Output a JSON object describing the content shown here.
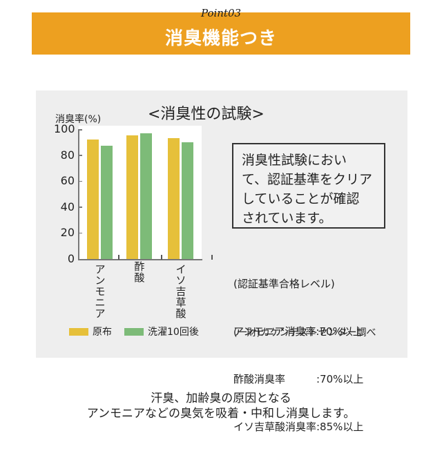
{
  "banner": {
    "subtitle": "Point03",
    "title": "消臭機能つき",
    "color": "#eda020"
  },
  "chart_data": {
    "type": "bar",
    "title": "<消臭性の試験>",
    "ylabel": "消臭率(%)",
    "xlabel": "",
    "ylim": [
      0,
      100
    ],
    "yticks": [
      0,
      20,
      40,
      60,
      80,
      100
    ],
    "categories": [
      "アンモニア",
      "酢酸",
      "イソ吉草酸"
    ],
    "series": [
      {
        "name": "原布",
        "color": "#e6c03a",
        "values": [
          92,
          95,
          93
        ]
      },
      {
        "name": "洗濯10回後",
        "color": "#7dbb78",
        "values": [
          87,
          97,
          90
        ]
      }
    ],
    "grid": false,
    "legend_position": "bottom"
  },
  "note": {
    "lines": [
      "消臭性試験におい",
      "て、認証基準をクリア",
      "していることが確認",
      "されています。"
    ]
  },
  "criteria": {
    "heading": "(認証基準合格レベル)",
    "rows": [
      "アンモニア消臭率:70%以上",
      "酢酸消臭率　　　:70%以上",
      "イソ吉草酸消臭率:85%以上"
    ]
  },
  "source": "(一財)カケンテストセンター調べ",
  "footer": {
    "line1": "汗臭、加齢臭の原因となる",
    "line2": "アンモニアなどの臭気を吸着・中和し消臭します。"
  }
}
